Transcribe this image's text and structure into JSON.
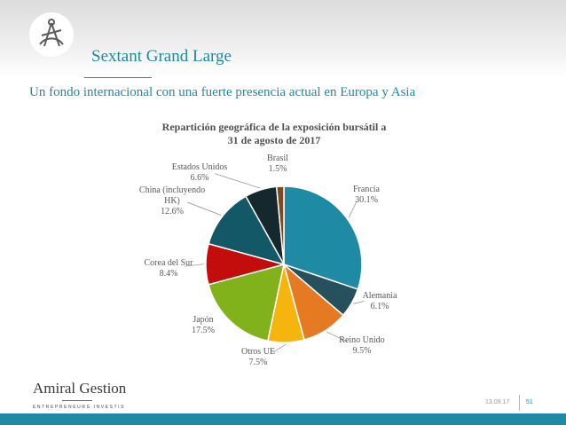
{
  "slide": {
    "title": "Sextant Grand Large",
    "subtitle": "Un fondo internacional con una fuerte presencia actual en Europa y Asia",
    "brand_name": "Amiral Gestion",
    "brand_tagline": "ENTREPRENEURS INVESTIS",
    "date": "13.09.17",
    "page_number": "51",
    "logo_icon": "sextant-logo-icon"
  },
  "chart_data": {
    "type": "pie",
    "title_lines": [
      "Repartición geográfica de la exposición bursátil  a",
      "31 de agosto de 2017"
    ],
    "slices": [
      {
        "label_lines": [
          "Francia"
        ],
        "value_label": "30.1%",
        "value": 30.1,
        "color": "#1e8aa3"
      },
      {
        "label_lines": [
          "Alemania"
        ],
        "value_label": "6.1%",
        "value": 6.1,
        "color": "#25505c"
      },
      {
        "label_lines": [
          "Reino Unido"
        ],
        "value_label": "9.5%",
        "value": 9.5,
        "color": "#e57a22"
      },
      {
        "label_lines": [
          "Otros UE"
        ],
        "value_label": "7.5%",
        "value": 7.5,
        "color": "#f6b40e"
      },
      {
        "label_lines": [
          "Japón"
        ],
        "value_label": "17.5%",
        "value": 17.5,
        "color": "#82b21b"
      },
      {
        "label_lines": [
          "Corea del Sur"
        ],
        "value_label": "8.4%",
        "value": 8.4,
        "color": "#c30d0d"
      },
      {
        "label_lines": [
          "China (incluyendo",
          "HK)"
        ],
        "value_label": "12.6%",
        "value": 12.6,
        "color": "#135866"
      },
      {
        "label_lines": [
          "Estados Unidos"
        ],
        "value_label": "6.6%",
        "value": 6.6,
        "color": "#15282e"
      },
      {
        "label_lines": [
          "Brasil"
        ],
        "value_label": "1.5%",
        "value": 1.5,
        "color": "#7d4a1f"
      }
    ]
  }
}
